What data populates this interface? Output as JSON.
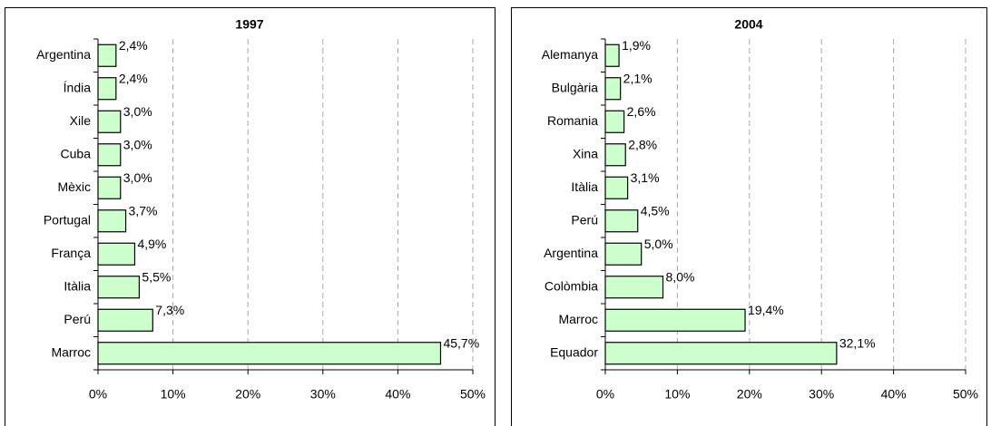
{
  "chart_data": [
    {
      "type": "bar",
      "orientation": "horizontal",
      "title": "1997",
      "categories": [
        "Argentina",
        "Índia",
        "Xile",
        "Cuba",
        "Mèxic",
        "Portugal",
        "França",
        "Itàlia",
        "Perú",
        "Marroc"
      ],
      "values": [
        2.4,
        2.4,
        3.0,
        3.0,
        3.0,
        3.7,
        4.9,
        5.5,
        7.3,
        45.7
      ],
      "value_labels": [
        "2,4%",
        "2,4%",
        "3,0%",
        "3,0%",
        "3,0%",
        "3,7%",
        "4,9%",
        "5,5%",
        "7,3%",
        "45,7%"
      ],
      "color": "#ccffcc",
      "grid": true,
      "xlim": [
        0,
        50
      ],
      "xticks": [
        {
          "value": 0,
          "label": "0%"
        },
        {
          "value": 10,
          "label": "10%"
        },
        {
          "value": 20,
          "label": "20%"
        },
        {
          "value": 30,
          "label": "30%"
        },
        {
          "value": 40,
          "label": "40%"
        },
        {
          "value": 50,
          "label": "50%"
        }
      ]
    },
    {
      "type": "bar",
      "orientation": "horizontal",
      "title": "2004",
      "categories": [
        "Alemanya",
        "Bulgària",
        "Romania",
        "Xina",
        "Itàlia",
        "Perú",
        "Argentina",
        "Colòmbia",
        "Marroc",
        "Equador"
      ],
      "values": [
        1.9,
        2.1,
        2.6,
        2.8,
        3.1,
        4.5,
        5.0,
        8.0,
        19.4,
        32.1
      ],
      "value_labels": [
        "1,9%",
        "2,1%",
        "2,6%",
        "2,8%",
        "3,1%",
        "4,5%",
        "5,0%",
        "8,0%",
        "19,4%",
        "32,1%"
      ],
      "color": "#ccffcc",
      "grid": true,
      "xlim": [
        0,
        50
      ],
      "xticks": [
        {
          "value": 0,
          "label": "0%"
        },
        {
          "value": 10,
          "label": "10%"
        },
        {
          "value": 20,
          "label": "20%"
        },
        {
          "value": 30,
          "label": "30%"
        },
        {
          "value": 40,
          "label": "40%"
        },
        {
          "value": 50,
          "label": "50%"
        }
      ]
    }
  ]
}
